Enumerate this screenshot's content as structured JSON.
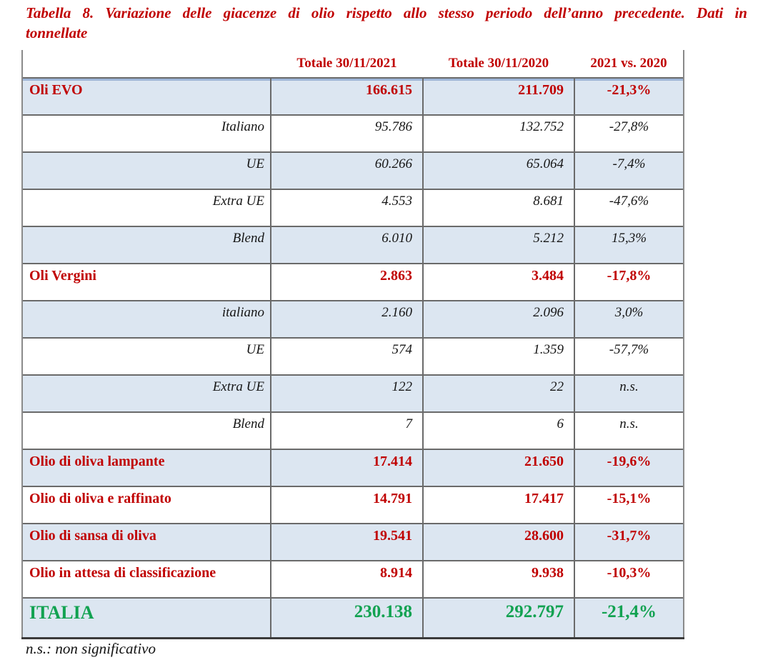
{
  "title": {
    "line1": "Tabella 8. Variazione delle giacenze di olio rispetto allo stesso periodo dell’anno precedente. Dati in",
    "line2": "tonnellate"
  },
  "table": {
    "headers": [
      "",
      "Totale 30/11/2021",
      "Totale 30/11/2020",
      "2021 vs. 2020"
    ],
    "rows": [
      {
        "label": "Oli EVO",
        "style": "category",
        "shaded": true,
        "v2021": "166.615",
        "v2020": "211.709",
        "delta": "-21,3%"
      },
      {
        "label": "Italiano",
        "style": "sub",
        "shaded": false,
        "v2021": "95.786",
        "v2020": "132.752",
        "delta": "-27,8%"
      },
      {
        "label": "UE",
        "style": "sub",
        "shaded": true,
        "v2021": "60.266",
        "v2020": "65.064",
        "delta": "-7,4%"
      },
      {
        "label": "Extra UE",
        "style": "sub",
        "shaded": false,
        "v2021": "4.553",
        "v2020": "8.681",
        "delta": "-47,6%"
      },
      {
        "label": "Blend",
        "style": "sub",
        "shaded": true,
        "v2021": "6.010",
        "v2020": "5.212",
        "delta": "15,3%"
      },
      {
        "label": "Oli Vergini",
        "style": "category",
        "shaded": false,
        "v2021": "2.863",
        "v2020": "3.484",
        "delta": "-17,8%"
      },
      {
        "label": "italiano",
        "style": "sub",
        "shaded": true,
        "v2021": "2.160",
        "v2020": "2.096",
        "delta": "3,0%"
      },
      {
        "label": "UE",
        "style": "sub",
        "shaded": false,
        "v2021": "574",
        "v2020": "1.359",
        "delta": "-57,7%"
      },
      {
        "label": "Extra UE",
        "style": "sub",
        "shaded": true,
        "v2021": "122",
        "v2020": "22",
        "delta": "n.s."
      },
      {
        "label": "Blend",
        "style": "sub",
        "shaded": false,
        "v2021": "7",
        "v2020": "6",
        "delta": "n.s."
      },
      {
        "label": "Olio di oliva lampante",
        "style": "category",
        "shaded": true,
        "v2021": "17.414",
        "v2020": "21.650",
        "delta": "-19,6%"
      },
      {
        "label": "Olio di oliva e raffinato",
        "style": "category",
        "shaded": false,
        "v2021": "14.791",
        "v2020": "17.417",
        "delta": "-15,1%"
      },
      {
        "label": "Olio di sansa di oliva",
        "style": "category",
        "shaded": true,
        "v2021": "19.541",
        "v2020": "28.600",
        "delta": "-31,7%"
      },
      {
        "label": "Olio in attesa di classificazione",
        "style": "category",
        "shaded": false,
        "v2021": "8.914",
        "v2020": "9.938",
        "delta": "-10,3%"
      },
      {
        "label": "ITALIA",
        "style": "total",
        "shaded": true,
        "v2021": "230.138",
        "v2020": "292.797",
        "delta": "-21,4%"
      }
    ]
  },
  "footnote": "n.s.: non significativo",
  "colors": {
    "heading_red": "#C00000",
    "total_green": "#12A251",
    "shaded_row_bg": "#DCE6F1",
    "accent_stripe": "#9EB6D8",
    "border_gray": "#6a6a6a"
  }
}
